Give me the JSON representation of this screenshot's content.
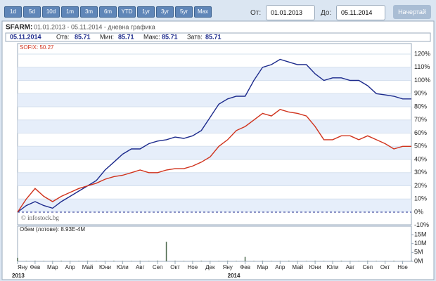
{
  "controls": {
    "ranges": [
      "1d",
      "5d",
      "10d",
      "1m",
      "3m",
      "6m",
      "YTD",
      "1yr",
      "3yr",
      "5yr",
      "Max"
    ],
    "from_label": "От:",
    "from": "01.01.2013",
    "to_label": "До:",
    "to": "05.11.2014",
    "submit": "Начертай"
  },
  "header": {
    "title": "SFARM:",
    "subtitle": "01.01.2013 - 05.11.2014 - дневна графика",
    "date": "05.11.2014",
    "fields": [
      {
        "label": "Отв:",
        "value": "85.71"
      },
      {
        "label": "Мин:",
        "value": "85.71"
      },
      {
        "label": "Макс:",
        "value": "85.71"
      },
      {
        "label": "Затв:",
        "value": "85.71"
      }
    ],
    "legend": "SOFIX: 50.27",
    "watermark": "© infostock.bg"
  },
  "chart_data": [
    {
      "type": "line",
      "categories": [
        "Яну",
        null,
        "Фев",
        null,
        "Мар",
        null,
        "Апр",
        null,
        "Май",
        null,
        "Юни",
        null,
        "Юли",
        null,
        "Авг",
        null,
        "Сеп",
        null,
        "Окт",
        null,
        "Ное",
        null,
        "Дек",
        null,
        "Яну",
        null,
        "Фев",
        null,
        "Мар",
        null,
        "Апр",
        null,
        "Май",
        null,
        "Юни",
        null,
        "Юли",
        null,
        "Авг",
        null,
        "Сеп",
        null,
        "Окт",
        null,
        "Ное",
        null
      ],
      "annotations": [
        "2013",
        "2014"
      ],
      "series": [
        {
          "name": "SFARM",
          "color": "#1c2a8c",
          "values": [
            0,
            5,
            8,
            5,
            3,
            8,
            12,
            16,
            20,
            24,
            32,
            38,
            44,
            48,
            48,
            52,
            54,
            55,
            57,
            56,
            58,
            62,
            72,
            82,
            86,
            88,
            88,
            100,
            110,
            112,
            116,
            114,
            112,
            112,
            105,
            100,
            102,
            102,
            100,
            100,
            96,
            90,
            89,
            88,
            86,
            86
          ]
        },
        {
          "name": "SOFIX",
          "color": "#d0321c",
          "values": [
            0,
            10,
            18,
            12,
            8,
            12,
            15,
            18,
            20,
            22,
            25,
            27,
            28,
            30,
            32,
            30,
            30,
            32,
            33,
            33,
            35,
            38,
            42,
            50,
            55,
            62,
            65,
            70,
            75,
            73,
            78,
            76,
            75,
            73,
            65,
            55,
            55,
            58,
            58,
            55,
            58,
            55,
            52,
            48,
            50,
            50
          ]
        }
      ],
      "ylim": [
        -10,
        120
      ],
      "yticks": [
        {
          "value": -10,
          "label": "-10%"
        },
        {
          "value": 0,
          "label": "0%"
        },
        {
          "value": 10,
          "label": "10%"
        },
        {
          "value": 20,
          "label": "20%"
        },
        {
          "value": 30,
          "label": "30%"
        },
        {
          "value": 40,
          "label": "40%"
        },
        {
          "value": 50,
          "label": "50%"
        },
        {
          "value": 60,
          "label": "60%"
        },
        {
          "value": 70,
          "label": "70%"
        },
        {
          "value": 80,
          "label": "80%"
        },
        {
          "value": 90,
          "label": "90%"
        },
        {
          "value": 100,
          "label": "100%"
        },
        {
          "value": 110,
          "label": "110%"
        },
        {
          "value": 120,
          "label": "120%"
        }
      ],
      "grid": true
    },
    {
      "type": "bar",
      "title": "Обем (лотове): 8.93E-4M",
      "color": "#4f6a4f",
      "values": [
        2,
        0.2,
        0.3,
        0.2,
        0.2,
        0.3,
        0.2,
        0.2,
        0.3,
        0.2,
        0.2,
        0.3,
        0.2,
        0.2,
        0.3,
        0.2,
        0.4,
        11,
        0.3,
        0.2,
        0.2,
        0.3,
        0.2,
        0.2,
        0.3,
        0.2,
        2.5,
        0.2,
        0.3,
        0.2,
        0.2,
        0.3,
        0.2,
        0.2,
        0.3,
        0.2,
        0.2,
        0.3,
        0.2,
        0.2,
        0.3,
        0.2,
        0.2,
        0.3,
        0.2,
        0.2
      ],
      "ylim": [
        0,
        15
      ],
      "yticks": [
        {
          "value": 0,
          "label": "0M"
        },
        {
          "value": 5,
          "label": "5M"
        },
        {
          "value": 10,
          "label": "10M"
        },
        {
          "value": 15,
          "label": "15M"
        }
      ]
    }
  ]
}
